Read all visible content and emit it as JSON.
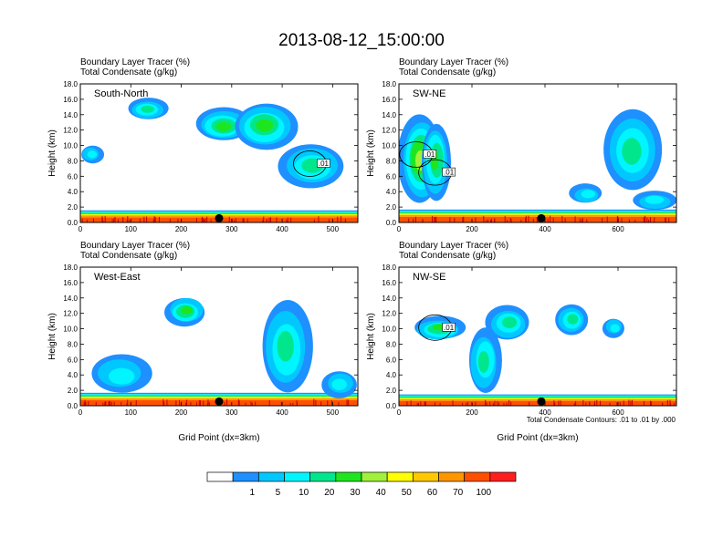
{
  "title": "2013-08-12_15:00:00",
  "legend": {
    "levels": [
      "1",
      "5",
      "10",
      "20",
      "30",
      "40",
      "50",
      "60",
      "70",
      "100"
    ],
    "colors": [
      "#ffffff",
      "#1e90ff",
      "#00c8ff",
      "#00f5ff",
      "#00e68c",
      "#1ee61e",
      "#a0f03c",
      "#ffff00",
      "#ffc800",
      "#ff9600",
      "#ff5000",
      "#ff1e1e"
    ]
  },
  "footnote": "Total Condensate Contours: .01 to .01 by .000",
  "chart_data": [
    {
      "type": "heatmap",
      "name": "South-North",
      "subtitle_1": "Boundary Layer Tracer    (%)",
      "subtitle_2": "Total Condensate    (g/kg)",
      "ylabel": "Height (km)",
      "xlabel": "",
      "xlim": [
        0,
        550
      ],
      "ylim": [
        0,
        18
      ],
      "xticks": [
        "0",
        "100",
        "200",
        "300",
        "400",
        "500"
      ],
      "yticks": [
        "0.0",
        "2.0",
        "4.0",
        "6.0",
        "8.0",
        "10.0",
        "12.0",
        "14.0",
        "16.0",
        "18.0"
      ],
      "contour_labels": [
        ".01"
      ],
      "marker_x": 275,
      "boundary_layer_top_km": 1.5,
      "clouds": [
        {
          "x": [
            95,
            175
          ],
          "z": [
            13.2,
            16.0
          ],
          "peak": 20
        },
        {
          "x": [
            0,
            45
          ],
          "z": [
            7.5,
            9.8
          ],
          "peak": 10
        },
        {
          "x": [
            230,
            340
          ],
          "z": [
            10.5,
            14.8
          ],
          "peak": 30
        },
        {
          "x": [
            305,
            430
          ],
          "z": [
            9.5,
            15.5
          ],
          "peak": 30
        },
        {
          "x": [
            395,
            525
          ],
          "z": [
            4.5,
            10.2
          ],
          "peak": 20
        }
      ]
    },
    {
      "type": "heatmap",
      "name": "SW-NE",
      "subtitle_1": "Boundary Layer Tracer    (%)",
      "subtitle_2": "Total Condensate    (g/kg)",
      "ylabel": "Height (km)",
      "xlabel": "",
      "xlim": [
        0,
        760
      ],
      "ylim": [
        0,
        18
      ],
      "xticks": [
        "0",
        "200",
        "400",
        "600"
      ],
      "yticks": [
        "0.0",
        "2.0",
        "4.0",
        "6.0",
        "8.0",
        "10.0",
        "12.0",
        "14.0",
        "16.0",
        "18.0"
      ],
      "contour_labels": [
        ".01",
        ".01"
      ],
      "marker_x": 390,
      "boundary_layer_top_km": 1.6,
      "clouds": [
        {
          "x": [
            0,
            120
          ],
          "z": [
            2.5,
            14.0
          ],
          "peak": 40
        },
        {
          "x": [
            60,
            140
          ],
          "z": [
            3.0,
            13.0
          ],
          "peak": 30
        },
        {
          "x": [
            470,
            560
          ],
          "z": [
            2.5,
            5.0
          ],
          "peak": 10
        },
        {
          "x": [
            560,
            720
          ],
          "z": [
            4.0,
            14.5
          ],
          "peak": 20
        },
        {
          "x": [
            640,
            760
          ],
          "z": [
            1.5,
            4.0
          ],
          "peak": 10
        }
      ]
    },
    {
      "type": "heatmap",
      "name": "West-East",
      "subtitle_1": "Boundary Layer Tracer    (%)",
      "subtitle_2": "Total Condensate    (g/kg)",
      "ylabel": "Height (km)",
      "xlabel": "Grid Point (dx=3km)",
      "xlim": [
        0,
        550
      ],
      "ylim": [
        0,
        18
      ],
      "xticks": [
        "0",
        "100",
        "200",
        "300",
        "400",
        "500"
      ],
      "yticks": [
        "0.0",
        "2.0",
        "4.0",
        "6.0",
        "8.0",
        "10.0",
        "12.0",
        "14.0",
        "16.0",
        "18.0"
      ],
      "contour_labels": [],
      "marker_x": 275,
      "boundary_layer_top_km": 1.6,
      "clouds": [
        {
          "x": [
            170,
            250
          ],
          "z": [
            10.5,
            14.2
          ],
          "peak": 30
        },
        {
          "x": [
            20,
            140
          ],
          "z": [
            1.5,
            6.5
          ],
          "peak": 10
        },
        {
          "x": [
            360,
            460
          ],
          "z": [
            1.5,
            13.5
          ],
          "peak": 20
        },
        {
          "x": [
            480,
            550
          ],
          "z": [
            1.0,
            4.5
          ],
          "peak": 10
        }
      ]
    },
    {
      "type": "heatmap",
      "name": "NW-SE",
      "subtitle_1": "Boundary Layer Tracer    (%)",
      "subtitle_2": "Total Condensate    (g/kg)",
      "ylabel": "Height (km)",
      "xlabel": "Grid Point (dx=3km)",
      "xlim": [
        0,
        760
      ],
      "ylim": [
        0,
        18
      ],
      "xticks": [
        "0",
        "200",
        "400",
        "600"
      ],
      "yticks": [
        "0.0",
        "2.0",
        "4.0",
        "6.0",
        "8.0",
        "10.0",
        "12.0",
        "14.0",
        "16.0",
        "18.0"
      ],
      "contour_labels": [
        ".01"
      ],
      "marker_x": 390,
      "boundary_layer_top_km": 1.4,
      "clouds": [
        {
          "x": [
            40,
            180
          ],
          "z": [
            8.5,
            11.5
          ],
          "peak": 30
        },
        {
          "x": [
            190,
            280
          ],
          "z": [
            1.5,
            10.0
          ],
          "peak": 20
        },
        {
          "x": [
            240,
            360
          ],
          "z": [
            8.5,
            13.0
          ],
          "peak": 20
        },
        {
          "x": [
            430,
            520
          ],
          "z": [
            9.0,
            13.0
          ],
          "peak": 20
        },
        {
          "x": [
            560,
            620
          ],
          "z": [
            9.0,
            11.5
          ],
          "peak": 10
        }
      ]
    }
  ]
}
